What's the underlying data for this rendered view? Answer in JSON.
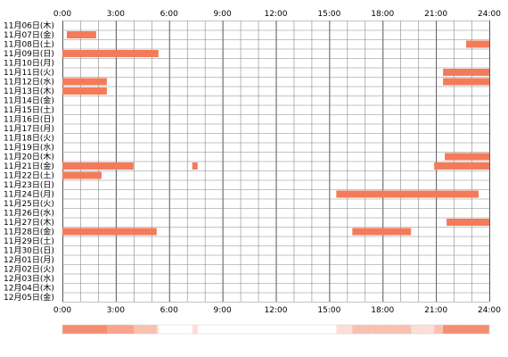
{
  "chart_data": {
    "type": "timeline",
    "title": "",
    "x_unit": "hour of day",
    "xlim": [
      0,
      24
    ],
    "x_ticks": [
      "0:00",
      "3:00",
      "6:00",
      "9:00",
      "12:00",
      "15:00",
      "18:00",
      "21:00",
      "24:00"
    ],
    "grid": true,
    "colors": {
      "bar": "#f47b59",
      "grid": "#888888",
      "frame": "#555555"
    },
    "rows": [
      {
        "label": "11月06日(木)",
        "spans": []
      },
      {
        "label": "11月07日(金)",
        "spans": [
          [
            0.25,
            1.9
          ]
        ]
      },
      {
        "label": "11月08日(土)",
        "spans": [
          [
            22.7,
            24
          ]
        ]
      },
      {
        "label": "11月09日(日)",
        "spans": [
          [
            0,
            5.4
          ]
        ]
      },
      {
        "label": "11月10日(月)",
        "spans": []
      },
      {
        "label": "11月11日(火)",
        "spans": [
          [
            21.4,
            24
          ]
        ]
      },
      {
        "label": "11月12日(水)",
        "spans": [
          [
            0,
            2.5
          ],
          [
            21.4,
            24
          ]
        ]
      },
      {
        "label": "11月13日(木)",
        "spans": [
          [
            0,
            2.5
          ]
        ]
      },
      {
        "label": "11月14日(金)",
        "spans": []
      },
      {
        "label": "11月15日(土)",
        "spans": []
      },
      {
        "label": "11月16日(日)",
        "spans": []
      },
      {
        "label": "11月17日(月)",
        "spans": []
      },
      {
        "label": "11月18日(火)",
        "spans": []
      },
      {
        "label": "11月19日(水)",
        "spans": []
      },
      {
        "label": "11月20日(木)",
        "spans": [
          [
            21.5,
            24
          ]
        ]
      },
      {
        "label": "11月21日(金)",
        "spans": [
          [
            0,
            4.0
          ],
          [
            7.3,
            7.6
          ],
          [
            20.9,
            24
          ]
        ]
      },
      {
        "label": "11月22日(土)",
        "spans": [
          [
            0,
            2.2
          ]
        ]
      },
      {
        "label": "11月23日(日)",
        "spans": []
      },
      {
        "label": "11月24日(月)",
        "spans": [
          [
            15.4,
            23.4
          ]
        ]
      },
      {
        "label": "11月25日(火)",
        "spans": []
      },
      {
        "label": "11月26日(水)",
        "spans": []
      },
      {
        "label": "11月27日(木)",
        "spans": [
          [
            21.6,
            24
          ]
        ]
      },
      {
        "label": "11月28日(金)",
        "spans": [
          [
            0,
            5.3
          ],
          [
            16.3,
            19.6
          ]
        ]
      },
      {
        "label": "11月29日(土)",
        "spans": []
      },
      {
        "label": "11月30日(日)",
        "spans": []
      },
      {
        "label": "12月01日(月)",
        "spans": []
      },
      {
        "label": "12月02日(火)",
        "spans": []
      },
      {
        "label": "12月03日(水)",
        "spans": []
      },
      {
        "label": "12月04日(木)",
        "spans": []
      },
      {
        "label": "12月05日(金)",
        "spans": []
      }
    ]
  }
}
